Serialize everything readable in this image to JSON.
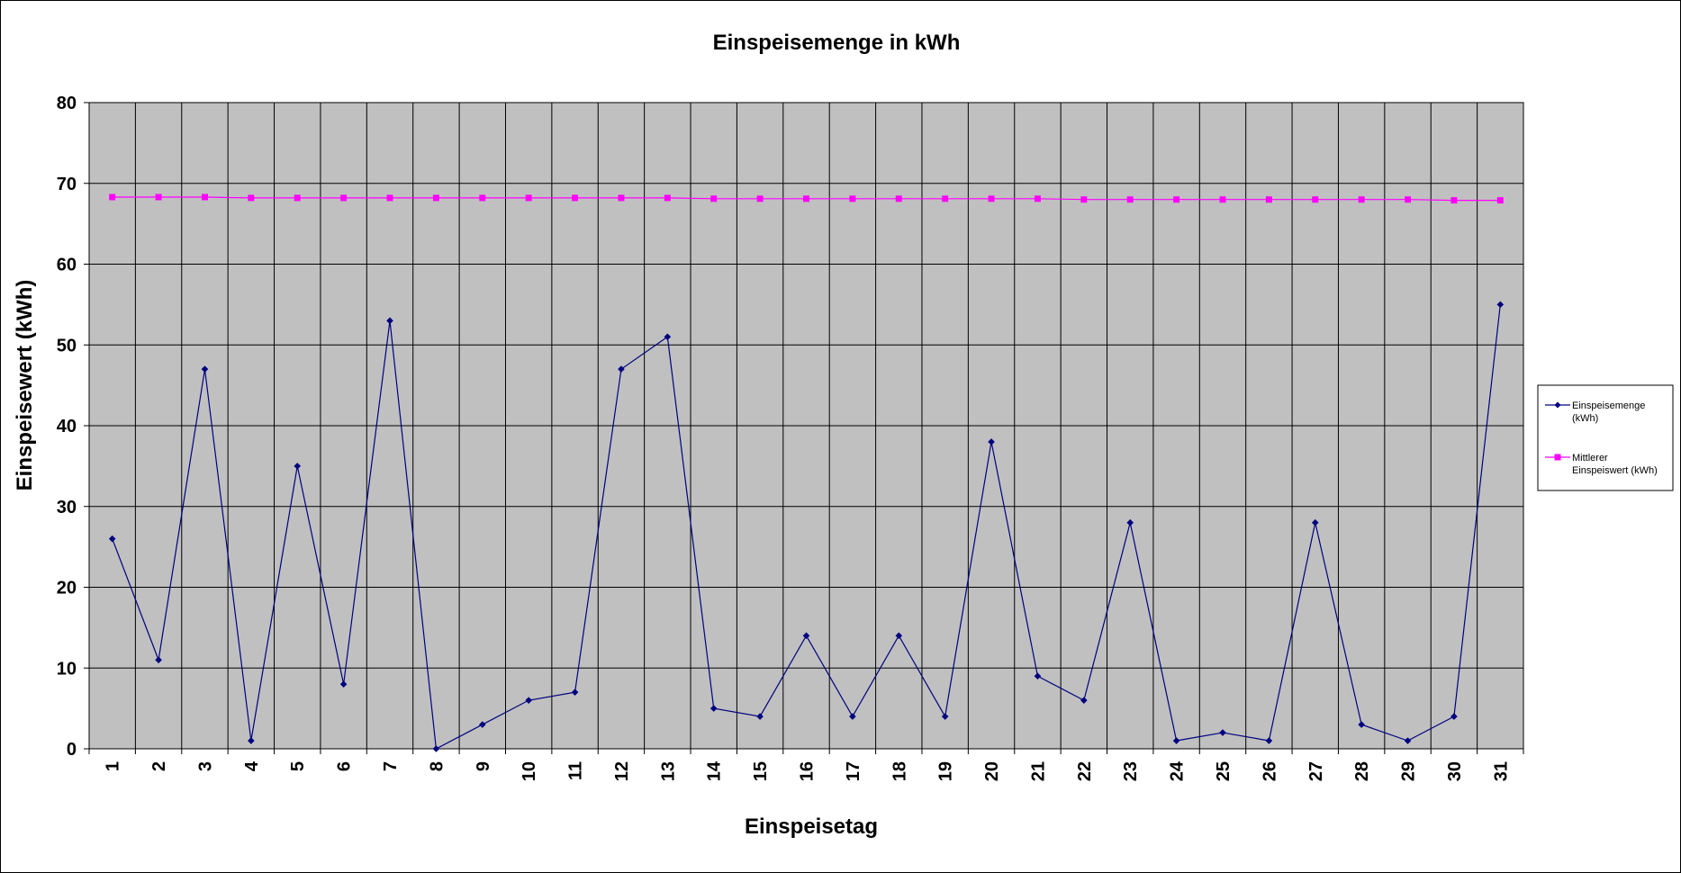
{
  "chart_data": {
    "type": "line",
    "title": "Einspeisemenge in kWh",
    "xlabel": "Einspeisetag",
    "ylabel": "Einspeisewert  (kWh)",
    "ylim": [
      0,
      80
    ],
    "yticks": [
      0,
      10,
      20,
      30,
      40,
      50,
      60,
      70,
      80
    ],
    "grid": true,
    "legend_position": "right",
    "plot_background": "#c0c0c0",
    "categories": [
      "1",
      "2",
      "3",
      "4",
      "5",
      "6",
      "7",
      "8",
      "9",
      "10",
      "11",
      "12",
      "13",
      "14",
      "15",
      "16",
      "17",
      "18",
      "19",
      "20",
      "21",
      "22",
      "23",
      "24",
      "25",
      "26",
      "27",
      "28",
      "29",
      "30",
      "31"
    ],
    "series": [
      {
        "name": "Einspeisemenge (kWh)",
        "legend_lines": [
          "Einspeisemenge",
          "(kWh)"
        ],
        "color": "#000080",
        "marker": "diamond",
        "values": [
          26,
          11,
          47,
          1,
          35,
          8,
          53,
          0,
          3,
          6,
          7,
          47,
          51,
          5,
          4,
          14,
          4,
          14,
          4,
          38,
          9,
          6,
          28,
          1,
          2,
          1,
          28,
          3,
          1,
          4,
          55
        ]
      },
      {
        "name": "Mittlerer Einspeiswert (kWh)",
        "legend_lines": [
          "Mittlerer",
          "Einspeiswert (kWh)"
        ],
        "color": "#ff00ff",
        "marker": "square",
        "values": [
          68.3,
          68.3,
          68.3,
          68.2,
          68.2,
          68.2,
          68.2,
          68.2,
          68.2,
          68.2,
          68.2,
          68.2,
          68.2,
          68.1,
          68.1,
          68.1,
          68.1,
          68.1,
          68.1,
          68.1,
          68.1,
          68.0,
          68.0,
          68.0,
          68.0,
          68.0,
          68.0,
          68.0,
          68.0,
          67.9,
          67.9
        ]
      }
    ]
  }
}
